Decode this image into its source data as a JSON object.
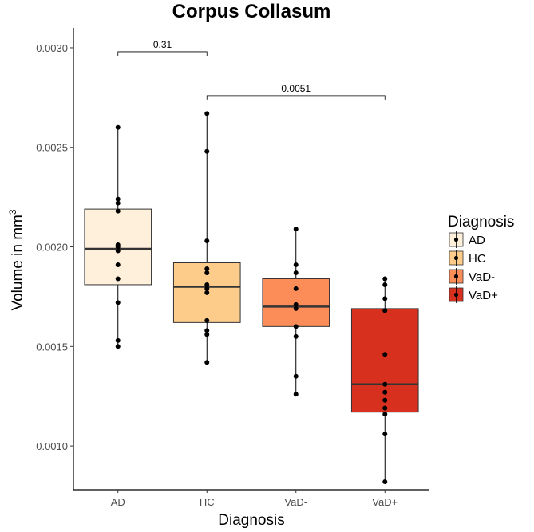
{
  "chart_data": {
    "type": "box",
    "title": "Corpus Collasum",
    "xlabel": "Diagnosis",
    "ylabel": "Volume in mm",
    "ylabel_superscript": "3",
    "ylim": [
      0.00078,
      0.0031
    ],
    "yticks": [
      {
        "value": 0.001,
        "label": "0.0010"
      },
      {
        "value": 0.0015,
        "label": "0.0015"
      },
      {
        "value": 0.002,
        "label": "0.0020"
      },
      {
        "value": 0.0025,
        "label": "0.0025"
      },
      {
        "value": 0.003,
        "label": "0.0030"
      }
    ],
    "categories": [
      "AD",
      "HC",
      "VaD-",
      "VaD+"
    ],
    "boxes": [
      {
        "category": "AD",
        "color": "#FEF0DA",
        "whisker_low": 0.0015,
        "q1": 0.00181,
        "median": 0.00199,
        "q3": 0.00219,
        "whisker_high": 0.0026
      },
      {
        "category": "HC",
        "color": "#FDCC8A",
        "whisker_low": 0.00142,
        "q1": 0.00162,
        "median": 0.0018,
        "q3": 0.00192,
        "whisker_high": 0.00267
      },
      {
        "category": "VaD-",
        "color": "#FC8D59",
        "whisker_low": 0.00126,
        "q1": 0.0016,
        "median": 0.0017,
        "q3": 0.00184,
        "whisker_high": 0.00209
      },
      {
        "category": "VaD+",
        "color": "#D7301F",
        "whisker_low": 0.00082,
        "q1": 0.00117,
        "median": 0.00131,
        "q3": 0.00169,
        "whisker_high": 0.00184
      }
    ],
    "points": [
      {
        "category": "AD",
        "values": [
          0.0026,
          0.00224,
          0.00222,
          0.00218,
          0.00201,
          0.002,
          0.00198,
          0.00191,
          0.00184,
          0.00172,
          0.00153,
          0.0015
        ]
      },
      {
        "category": "HC",
        "values": [
          0.00267,
          0.00248,
          0.00203,
          0.00189,
          0.00187,
          0.00181,
          0.00179,
          0.00177,
          0.00163,
          0.00158,
          0.00156,
          0.00142
        ]
      },
      {
        "category": "VaD-",
        "values": [
          0.00209,
          0.00191,
          0.00187,
          0.00179,
          0.00171,
          0.00169,
          0.0016,
          0.00155,
          0.00135,
          0.00126
        ]
      },
      {
        "category": "VaD+",
        "values": [
          0.00184,
          0.00181,
          0.00174,
          0.00168,
          0.00146,
          0.00131,
          0.00127,
          0.00123,
          0.00119,
          0.00116,
          0.00106,
          0.00082
        ]
      }
    ],
    "comparisons": [
      {
        "from": "AD",
        "to": "HC",
        "y": 0.00298,
        "label": "0.31"
      },
      {
        "from": "HC",
        "to": "VaD+",
        "y": 0.00276,
        "label": "0.0051"
      }
    ],
    "legend": {
      "title": "Diagnosis",
      "position": "right",
      "items": [
        {
          "label": "AD",
          "color": "#FEF0DA"
        },
        {
          "label": "HC",
          "color": "#FDCC8A"
        },
        {
          "label": "VaD-",
          "color": "#FC8D59"
        },
        {
          "label": "VaD+",
          "color": "#D7301F"
        }
      ]
    },
    "grid": false
  }
}
